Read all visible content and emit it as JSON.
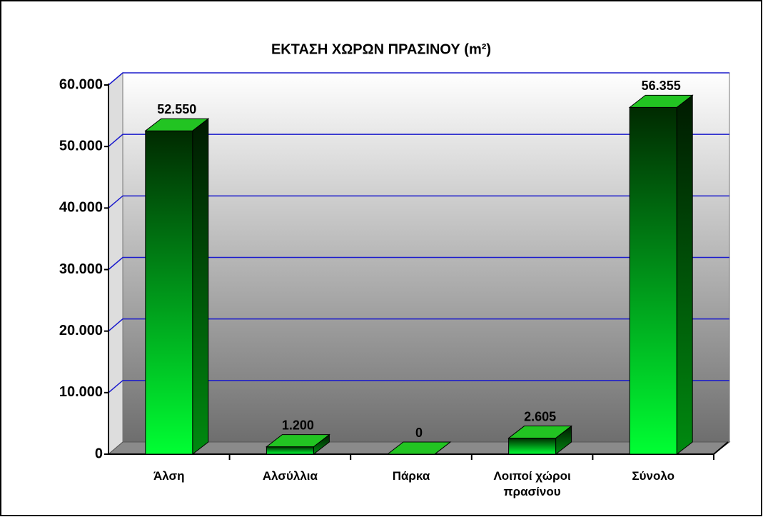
{
  "chart_data": {
    "type": "bar3d",
    "title": "ΕΚΤΑΣΗ ΧΩΡΩΝ ΠΡΑΣΙΝΟΥ (m²)",
    "categories": [
      "Άλση",
      "Αλσύλλια",
      "Πάρκα",
      "Λοιποί χώροι πρασίνου",
      "Σύνολο"
    ],
    "values": [
      52550,
      1200,
      0,
      2605,
      56355
    ],
    "value_labels": [
      "52.550",
      "1.200",
      "0",
      "2.605",
      "56.355"
    ],
    "color": "#00ff33",
    "ylim": [
      0,
      60000
    ],
    "yticks": [
      0,
      {
        "value": 10000,
        "label": "10.000"
      },
      {
        "value": 20000,
        "label": "20.000"
      },
      {
        "value": 30000,
        "label": "30.000"
      },
      {
        "value": 40000,
        "label": "40.000"
      },
      {
        "value": 50000,
        "label": "50.000"
      },
      {
        "value": 60000,
        "label": "60.000"
      }
    ],
    "grid": true
  }
}
